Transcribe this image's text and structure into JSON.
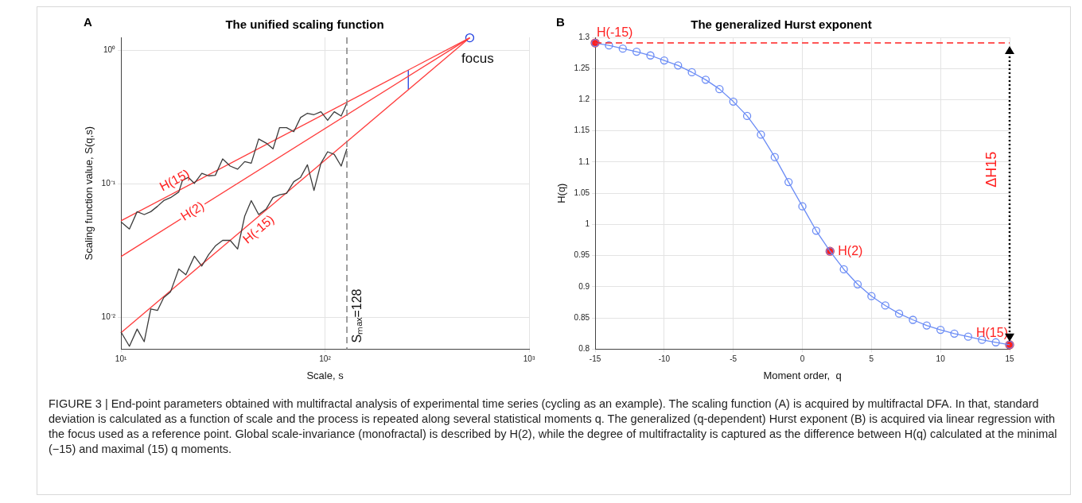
{
  "chart_data": [
    {
      "type": "line",
      "title": "The unified scaling function",
      "xlabel": "Scale, s",
      "ylabel": "Scaling function value, S(q,s)",
      "log": "xy",
      "xlim": [
        10,
        1000
      ],
      "ylim": [
        0.0058,
        1.25
      ],
      "xticks": [
        {
          "value": 10,
          "label": "10¹"
        },
        {
          "value": 100,
          "label": "10²"
        },
        {
          "value": 1000,
          "label": "10³"
        }
      ],
      "yticks": [
        {
          "value": 0.01,
          "label": "10⁻²"
        },
        {
          "value": 0.1,
          "label": "10⁻¹"
        },
        {
          "value": 1,
          "label": "10⁰"
        }
      ],
      "grid": true,
      "legend": false,
      "line_style": "solid",
      "marker": "none",
      "series": [
        {
          "color": "#3c3c3c",
          "x": [
            10,
            11,
            12,
            13,
            14,
            15.1,
            16.2,
            17.5,
            19.2,
            20,
            21.4,
            22.9,
            24.9,
            26.9,
            29,
            31.5,
            34.3,
            37.3,
            40.4,
            43.5,
            47.3,
            51.5,
            55.6,
            59.9,
            64.8,
            70.3,
            75.9,
            82,
            88.3,
            95.5,
            103,
            111,
            120,
            128
          ],
          "values": [
            0.052,
            0.046,
            0.062,
            0.059,
            0.062,
            0.068,
            0.075,
            0.079,
            0.087,
            0.106,
            0.112,
            0.101,
            0.12,
            0.115,
            0.116,
            0.154,
            0.136,
            0.129,
            0.147,
            0.143,
            0.217,
            0.202,
            0.183,
            0.264,
            0.264,
            0.246,
            0.314,
            0.338,
            0.33,
            0.347,
            0.299,
            0.347,
            0.322,
            0.402
          ]
        },
        {
          "color": "#3c3c3c",
          "x": [
            10,
            11,
            12,
            13,
            14,
            15.1,
            16.2,
            17.5,
            19.2,
            20.8,
            22.9,
            24.9,
            26.9,
            29,
            31.5,
            34.3,
            37.3,
            40.4,
            43.5,
            47.3,
            51.5,
            55.6,
            59.9,
            64.8,
            70.3,
            75.9,
            82,
            88.3,
            95.5,
            103,
            111,
            120,
            128
          ],
          "values": [
            0.0078,
            0.0061,
            0.0082,
            0.0066,
            0.0116,
            0.0113,
            0.0141,
            0.0156,
            0.0231,
            0.0209,
            0.0288,
            0.0243,
            0.0296,
            0.0343,
            0.0378,
            0.0378,
            0.0326,
            0.0574,
            0.075,
            0.059,
            0.065,
            0.079,
            0.083,
            0.085,
            0.104,
            0.112,
            0.139,
            0.0895,
            0.143,
            0.174,
            0.166,
            0.136,
            0.183
          ]
        },
        {
          "type": "line",
          "color": "#ff3b3b",
          "x": [
            10,
            512
          ],
          "values": [
            0.053,
            1.24
          ]
        },
        {
          "type": "line",
          "color": "#ff3b3b",
          "x": [
            10,
            512
          ],
          "values": [
            0.0286,
            1.24
          ]
        },
        {
          "type": "line",
          "color": "#ff3b3b",
          "x": [
            10,
            512
          ],
          "values": [
            0.0077,
            1.24
          ]
        },
        {
          "type": "line",
          "color": "#1f3fe0",
          "x": [
            256,
            256
          ],
          "values": [
            0.51,
            0.71
          ]
        },
        {
          "type": "scatter",
          "name": "focus",
          "marker": "circle",
          "color": "#1f3fe0",
          "x": [
            512
          ],
          "values": [
            1.24
          ]
        }
      ],
      "ref_lines": [
        {
          "axis": "x",
          "value": 128,
          "label": "Sₘₐₓ=128",
          "color": "#808080",
          "line_style": "dashed"
        }
      ],
      "annotations": [
        "A",
        {
          "text": "H(15)",
          "x": 19.4,
          "y": 0.09
        },
        {
          "text": "H(2)",
          "x": 22.5,
          "y": 0.062
        },
        {
          "text": "H(-15)",
          "x": 44,
          "y": 0.052
        }
      ]
    },
    {
      "type": "line",
      "title": "The generalized Hurst exponent",
      "xlabel": "Moment order,  q",
      "ylabel": "H(q)",
      "xlim": [
        -15,
        15
      ],
      "xticks": [
        -15,
        -10,
        -5,
        0,
        5,
        10,
        15
      ],
      "ylim": [
        0.8,
        1.3
      ],
      "yticks": [
        0.8,
        0.85,
        0.9,
        0.95,
        1,
        1.05,
        1.1,
        1.15,
        1.2,
        1.25,
        1.3
      ],
      "grid": true,
      "legend": false,
      "line_style": "solid",
      "marker": "circle",
      "series": [
        {
          "color": "#6b8cf5",
          "x": [
            -15,
            -14,
            -13,
            -12,
            -11,
            -10,
            -9,
            -8,
            -7,
            -6,
            -5,
            -4,
            -3,
            -2,
            -1,
            0,
            1,
            2,
            3,
            4,
            5,
            6,
            7,
            8,
            9,
            10,
            11,
            12,
            13,
            14,
            15
          ],
          "values": [
            1.291,
            1.287,
            1.282,
            1.277,
            1.271,
            1.263,
            1.255,
            1.244,
            1.232,
            1.217,
            1.197,
            1.174,
            1.144,
            1.108,
            1.068,
            1.029,
            0.99,
            0.957,
            0.928,
            0.904,
            0.885,
            0.87,
            0.857,
            0.847,
            0.838,
            0.831,
            0.825,
            0.82,
            0.815,
            0.811,
            0.807
          ]
        },
        {
          "type": "scatter",
          "color": "#ff2020",
          "x": [
            -15,
            2,
            15
          ],
          "values": [
            1.291,
            0.957,
            0.807
          ]
        }
      ],
      "ref_lines": [
        {
          "axis": "y",
          "value": 1.291,
          "color": "#ff2020",
          "line_style": "dashed"
        }
      ],
      "annotations": [
        "B",
        {
          "text": "H(-15)",
          "x": -15,
          "y": 1.291
        },
        {
          "text": "H(2)",
          "x": 2,
          "y": 0.957
        },
        {
          "text": "H(15)",
          "x": 15,
          "y": 0.807
        },
        "ΔH15"
      ]
    },
    {
      "type": "other",
      "annotations": [
        "FIGURE 3 | End-point parameters obtained with multifractal analysis of experimental time series (cycling as an example). The scaling function (A) is acquired by multifractal DFA. In that, standard deviation is calculated as a function of scale and the process is repeated along several statistical moments q. The generalized (q-dependent) Hurst exponent (B) is acquired via linear regression with the focus used as a reference point. Global scale-invariance (monofractal) is described by H(2), while the degree of multifractality is captured as the difference between H(q) calculated at the minimal (−15) and maximal (15) q moments."
      ]
    }
  ]
}
